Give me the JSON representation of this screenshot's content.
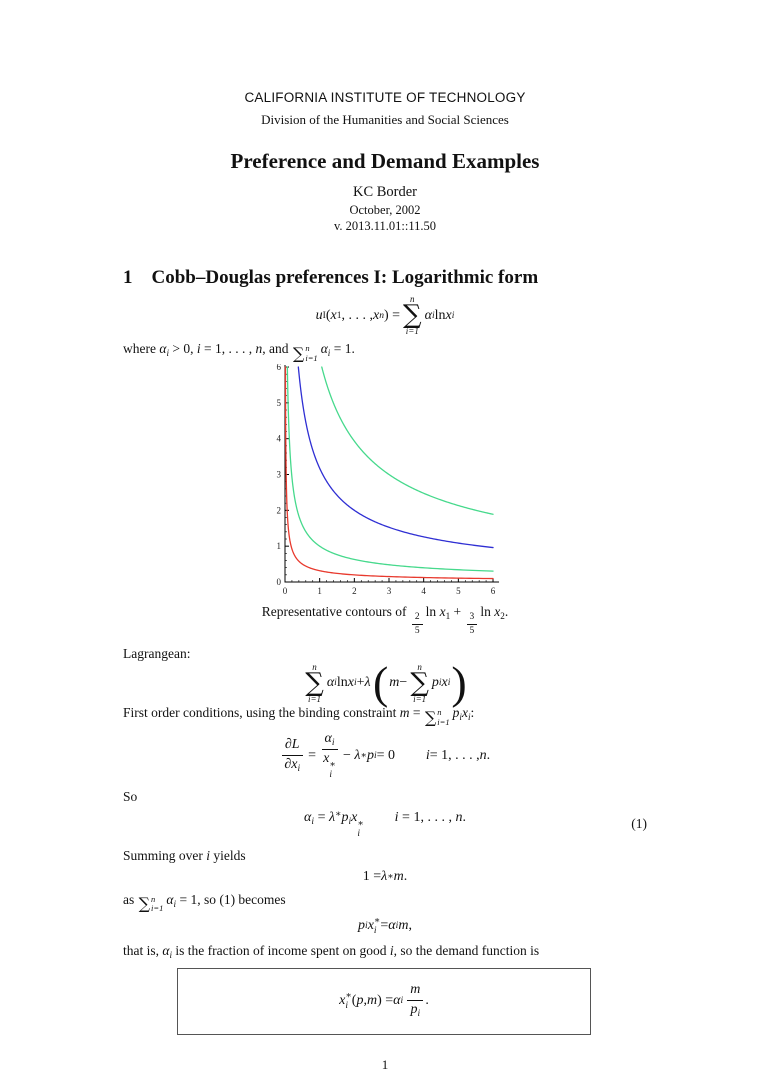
{
  "page": {
    "institution": "CALIFORNIA INSTITUTE OF TECHNOLOGY",
    "division": "Division of the Humanities and Social Sciences",
    "title": "Preference and Demand Examples",
    "author": "KC Border",
    "date": "October, 2002",
    "version": "v. 2013.11.01::11.50",
    "page_number": "1"
  },
  "section": {
    "number": "1",
    "title": "Cobb–Douglas preferences I: Logarithmic form"
  },
  "labels": {
    "lagrangean": "Lagrangean:",
    "so": "So"
  },
  "symbols": {
    "sum": "∑"
  },
  "equations": {
    "utility": [
      [
        "i",
        "u"
      ],
      [
        "sub",
        "I",
        "r"
      ],
      [
        "r",
        "("
      ],
      [
        "i",
        "x"
      ],
      [
        "sub",
        "1",
        "r"
      ],
      [
        "r",
        ", . . . , "
      ],
      [
        "i",
        "x"
      ],
      [
        "sub",
        "n"
      ],
      [
        "r",
        ") = "
      ],
      [
        "sum",
        "n",
        "i=1"
      ],
      [
        "i",
        "α"
      ],
      [
        "sub",
        "i"
      ],
      [
        "r",
        " ln "
      ],
      [
        "i",
        "x"
      ],
      [
        "sub",
        "i"
      ]
    ],
    "where_line": [
      [
        "r",
        "where "
      ],
      [
        "i",
        "α"
      ],
      [
        "sub",
        "i"
      ],
      [
        "r",
        " > 0, "
      ],
      [
        "i",
        "i"
      ],
      [
        "r",
        " = 1, . . . , "
      ],
      [
        "i",
        "n"
      ],
      [
        "r",
        ", and "
      ],
      [
        "sumi",
        "n",
        "i=1"
      ],
      [
        "sp",
        0.15
      ],
      [
        "i",
        "α"
      ],
      [
        "sub",
        "i"
      ],
      [
        "r",
        " = 1."
      ]
    ],
    "caption": [
      [
        "r",
        "Representative contours of "
      ],
      [
        "frac",
        [
          [
            "r",
            "2"
          ]
        ],
        [
          [
            "r",
            "5"
          ]
        ]
      ],
      [
        "sp",
        0.08
      ],
      [
        "r",
        "ln "
      ],
      [
        "i",
        "x"
      ],
      [
        "sub",
        "1",
        "r"
      ],
      [
        "r",
        " + "
      ],
      [
        "frac",
        [
          [
            "r",
            "3"
          ]
        ],
        [
          [
            "r",
            "5"
          ]
        ]
      ],
      [
        "sp",
        0.08
      ],
      [
        "r",
        "ln "
      ],
      [
        "i",
        "x"
      ],
      [
        "sub",
        "2",
        "r"
      ],
      [
        "r",
        "."
      ]
    ],
    "lagrangean": [
      [
        "sum",
        "n",
        "i=1"
      ],
      [
        "i",
        "α"
      ],
      [
        "sub",
        "i"
      ],
      [
        "r",
        " ln "
      ],
      [
        "i",
        "x"
      ],
      [
        "sub",
        "i"
      ],
      [
        "r",
        " + "
      ],
      [
        "i",
        "λ"
      ],
      [
        "sp",
        0.1
      ],
      [
        "bigp",
        "("
      ],
      [
        "i",
        "m"
      ],
      [
        "r",
        " − "
      ],
      [
        "sum",
        "n",
        "i=1"
      ],
      [
        "i",
        "p"
      ],
      [
        "sub",
        "i"
      ],
      [
        "i",
        "x"
      ],
      [
        "sub",
        "i"
      ],
      [
        "bigp",
        ")"
      ]
    ],
    "foc_intro": [
      [
        "r",
        "First order conditions, using the binding constraint "
      ],
      [
        "i",
        "m"
      ],
      [
        "r",
        " = "
      ],
      [
        "sumi",
        "n",
        "i=1"
      ],
      [
        "sp",
        0.15
      ],
      [
        "i",
        "p"
      ],
      [
        "sub",
        "i"
      ],
      [
        "i",
        "x"
      ],
      [
        "sub",
        "i"
      ],
      [
        "r",
        ":"
      ]
    ],
    "foc": [
      [
        "frac",
        [
          [
            "i",
            "∂L"
          ]
        ],
        [
          [
            "i",
            "∂x"
          ],
          [
            "sub",
            "i"
          ]
        ]
      ],
      [
        "sp",
        0.25
      ],
      [
        "r",
        "="
      ],
      [
        "sp",
        0.25
      ],
      [
        "frac",
        [
          [
            "i",
            "α"
          ],
          [
            "sub",
            "i"
          ]
        ],
        [
          [
            "i",
            "x"
          ],
          [
            "ss",
            "∗",
            "i"
          ]
        ]
      ],
      [
        "sp",
        0.25
      ],
      [
        "r",
        "−"
      ],
      [
        "sp",
        0.25
      ],
      [
        "i",
        "λ"
      ],
      [
        "sup",
        "∗",
        "r"
      ],
      [
        "i",
        "p"
      ],
      [
        "sub",
        "i"
      ],
      [
        "r",
        " = 0"
      ],
      [
        "sp",
        2.2
      ],
      [
        "i",
        "i"
      ],
      [
        "r",
        " = 1, . . . , "
      ],
      [
        "i",
        "n"
      ],
      [
        "r",
        "."
      ]
    ],
    "eq1": [
      [
        "i",
        "α"
      ],
      [
        "sub",
        "i"
      ],
      [
        "r",
        " = "
      ],
      [
        "i",
        "λ"
      ],
      [
        "sup",
        "∗",
        "r"
      ],
      [
        "i",
        "p"
      ],
      [
        "sub",
        "i"
      ],
      [
        "i",
        "x"
      ],
      [
        "ss",
        "∗",
        "i"
      ],
      [
        "sp",
        2.2
      ],
      [
        "i",
        "i"
      ],
      [
        "r",
        " = 1, . . . , "
      ],
      [
        "i",
        "n"
      ],
      [
        "r",
        "."
      ]
    ],
    "eq1_tag": "(1)",
    "summing_line": [
      [
        "r",
        "Summing over "
      ],
      [
        "i",
        "i"
      ],
      [
        "r",
        " yields"
      ]
    ],
    "lambda_m": [
      [
        "r",
        "1 = "
      ],
      [
        "i",
        "λ"
      ],
      [
        "sup",
        "∗",
        "r"
      ],
      [
        "i",
        "m"
      ],
      [
        "r",
        "."
      ]
    ],
    "as_line": [
      [
        "r",
        "as "
      ],
      [
        "sumi",
        "n",
        "i=1"
      ],
      [
        "sp",
        0.15
      ],
      [
        "i",
        "α"
      ],
      [
        "sub",
        "i"
      ],
      [
        "r",
        " = 1, so (1) becomes"
      ]
    ],
    "pixi": [
      [
        "i",
        "p"
      ],
      [
        "sub",
        "i"
      ],
      [
        "i",
        "x"
      ],
      [
        "ss",
        "∗",
        "i"
      ],
      [
        "r",
        " = "
      ],
      [
        "i",
        "α"
      ],
      [
        "sub",
        "i"
      ],
      [
        "i",
        "m"
      ],
      [
        "r",
        ","
      ]
    ],
    "that_is_line": [
      [
        "r",
        "that is, "
      ],
      [
        "i",
        "α"
      ],
      [
        "sub",
        "i"
      ],
      [
        "r",
        " is the fraction of income spent on good "
      ],
      [
        "i",
        "i"
      ],
      [
        "r",
        ", so the demand function is"
      ]
    ],
    "demand": [
      [
        "i",
        "x"
      ],
      [
        "ss",
        "∗",
        "i"
      ],
      [
        "r",
        "("
      ],
      [
        "i",
        "p"
      ],
      [
        "r",
        ", "
      ],
      [
        "i",
        "m"
      ],
      [
        "r",
        ") = "
      ],
      [
        "i",
        "α"
      ],
      [
        "sub",
        "i"
      ],
      [
        "sp",
        0.15
      ],
      [
        "frac",
        [
          [
            "i",
            "m"
          ]
        ],
        [
          [
            "i",
            "p"
          ],
          [
            "sub",
            "i"
          ]
        ]
      ],
      [
        "r",
        "."
      ]
    ]
  },
  "chart_data": {
    "type": "line",
    "title": "",
    "xlabel": "",
    "ylabel": "",
    "function": "u(x1,x2) = (2/5)·ln(x1) + (3/5)·ln(x2)",
    "alpha": [
      0.4,
      0.6
    ],
    "x_range": [
      0,
      6
    ],
    "y_range": [
      0,
      6
    ],
    "x_ticks": [
      0,
      1,
      2,
      3,
      4,
      5,
      6
    ],
    "y_ticks": [
      0,
      1,
      2,
      3,
      4,
      5,
      6
    ],
    "grid": false,
    "legend": false,
    "axis_color": "#000000",
    "tick_label_color": "#222222",
    "series": [
      {
        "name": "contour u = ln 0.5 (through (0.5, 0.5))",
        "level": -0.6931,
        "color": "#e8392d"
      },
      {
        "name": "contour u = 0 (through (1, 1))",
        "level": 0,
        "color": "#46d98c"
      },
      {
        "name": "contour u = ln 2 (through (2, 2))",
        "level": 0.6931,
        "color": "#2f2fd3"
      },
      {
        "name": "contour u = ln 3 (through (3, 3))",
        "level": 1.0986,
        "color": "#46d98c"
      }
    ]
  }
}
